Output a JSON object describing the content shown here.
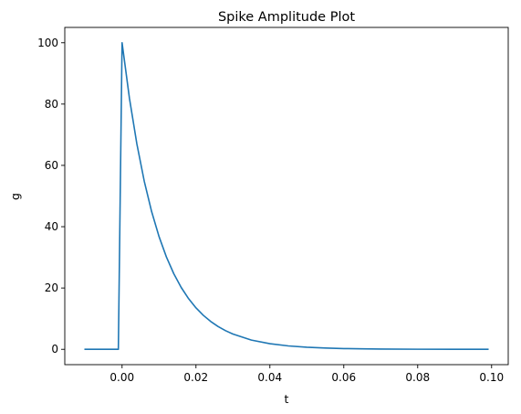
{
  "chart_data": {
    "type": "line",
    "title": "Spike Amplitude Plot",
    "xlabel": "t",
    "ylabel": "g",
    "xlim": [
      -0.0155,
      0.1045
    ],
    "ylim": [
      -5,
      105
    ],
    "xticks": [
      0.0,
      0.02,
      0.04,
      0.06,
      0.08,
      0.1
    ],
    "xtick_labels": [
      "0.00",
      "0.02",
      "0.04",
      "0.06",
      "0.08",
      "0.10"
    ],
    "yticks": [
      0,
      20,
      40,
      60,
      80,
      100
    ],
    "ytick_labels": [
      "0",
      "20",
      "40",
      "60",
      "80",
      "100"
    ],
    "grid": false,
    "series": [
      {
        "color": "#1f77b4",
        "x": [
          -0.01,
          -0.001,
          0.0,
          0.002,
          0.004,
          0.006,
          0.008,
          0.01,
          0.012,
          0.014,
          0.016,
          0.018,
          0.02,
          0.022,
          0.024,
          0.026,
          0.028,
          0.03,
          0.035,
          0.04,
          0.045,
          0.05,
          0.055,
          0.06,
          0.065,
          0.07,
          0.08,
          0.09,
          0.099
        ],
        "y": [
          0,
          0,
          100,
          81.87,
          67.03,
          54.88,
          44.93,
          36.79,
          30.12,
          24.66,
          20.19,
          16.53,
          13.53,
          11.08,
          9.07,
          7.43,
          6.08,
          4.98,
          3.02,
          1.83,
          1.11,
          0.67,
          0.41,
          0.25,
          0.15,
          0.09,
          0.03,
          0.01,
          0.0
        ]
      }
    ]
  }
}
